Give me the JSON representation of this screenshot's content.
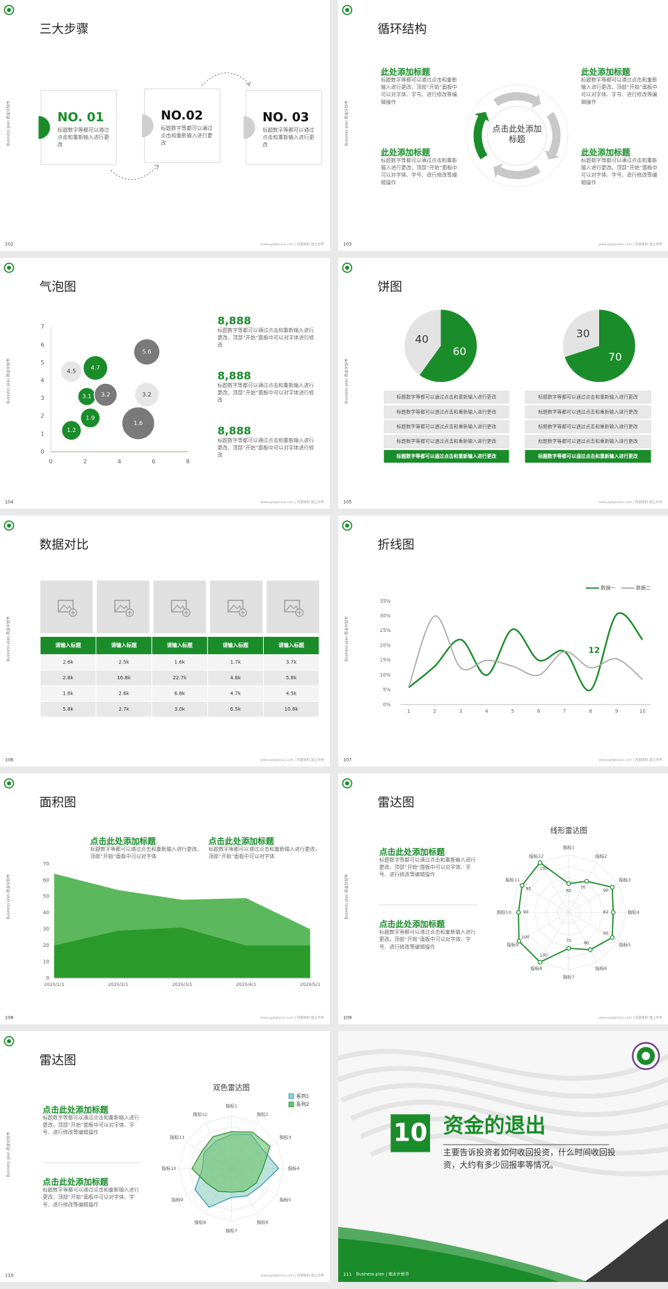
{
  "common": {
    "side_label": "Business plan 商业计划书",
    "footer": "www.pptgenius.com | 内部资料 禁止外传"
  },
  "slides": [
    {
      "page": "102",
      "title": "三大步骤",
      "steps": [
        {
          "label": "NO. 01",
          "text": "标题数字等都可以通过点击和重新输入进行更改"
        },
        {
          "label": "NO.02",
          "text": "标题数字等都可以通过点击和重新输入进行更改"
        },
        {
          "label": "NO. 03",
          "text": "标题数字等都可以通过点击和重新输入进行更改"
        }
      ]
    },
    {
      "page": "103",
      "title": "循环结构",
      "center": "点击此处添加标题",
      "items": [
        {
          "heading": "此处添加标题",
          "text": "标题数字等都可以通过点击和重新输入进行更改，顶部“开始”面板中可以对字体、字号、进行修改等编辑操作"
        },
        {
          "heading": "此处添加标题",
          "text": "标题数字等都可以通过点击和重新输入进行更改，顶部“开始”面板中可以对字体、字号、进行修改等编辑操作"
        },
        {
          "heading": "此处添加标题",
          "text": "标题数字等都可以通过点击和重新输入进行更改，顶部“开始”面板中可以对字体、字号、进行修改等编辑操作"
        },
        {
          "heading": "此处添加标题",
          "text": "标题数字等都可以通过点击和重新输入进行更改，顶部“开始”面板中可以对字体、字号、进行修改等编辑操作"
        }
      ]
    },
    {
      "page": "104",
      "title": "气泡图",
      "chart": {
        "type": "bubble",
        "x": [
          1.2,
          2.6,
          2.1,
          3.2,
          5.6,
          5.6,
          2.3,
          1.2,
          5.1
        ],
        "y": [
          4.5,
          4.7,
          3.1,
          3.2,
          5.6,
          3.2,
          1.9,
          1.2,
          1.6
        ],
        "size": [
          13,
          15,
          11,
          14,
          16,
          15,
          12,
          12,
          20
        ],
        "colors": [
          "#e6e6e6",
          "#1a8c2a",
          "#1a8c2a",
          "#7a7a7a",
          "#7a7a7a",
          "#e6e6e6",
          "#1a8c2a",
          "#1a8c2a",
          "#7a7a7a"
        ],
        "xlim": [
          0,
          8
        ],
        "xticks": [
          0,
          2,
          4,
          6,
          8
        ],
        "ylim": [
          0,
          7
        ],
        "yticks": [
          0,
          1,
          2,
          3,
          4,
          5,
          6,
          7
        ]
      },
      "notes": [
        {
          "value": "8,888",
          "text": "标题数字等都可以通过点击和重新输入进行更改，顶部“开始”面板中可以对字体进行修改"
        },
        {
          "value": "8,888",
          "text": "标题数字等都可以通过点击和重新输入进行更改，顶部“开始”面板中可以对字体进行修改"
        },
        {
          "value": "8,888",
          "text": "标题数字等都可以通过点击和重新输入进行更改，顶部“开始”面板中可以对字体进行修改"
        }
      ]
    },
    {
      "page": "105",
      "title": "饼图",
      "pies": [
        {
          "type": "pie",
          "values": [
            60,
            40
          ],
          "colors": [
            "#1a8c2a",
            "#e3e3e3"
          ]
        },
        {
          "type": "pie",
          "values": [
            70,
            30
          ],
          "colors": [
            "#1a8c2a",
            "#e3e3e3"
          ]
        }
      ],
      "lists": [
        [
          "标题数字等都可以通过点击和重新输入进行更改",
          "标题数字等都可以通过点击和重新输入进行更改",
          "标题数字等都可以通过点击和重新输入进行更改",
          "标题数字等都可以通过点击和重新输入进行更改",
          "标题数字等都可以通过点击和重新输入进行更改"
        ],
        [
          "标题数字等都可以通过点击和重新输入进行更改",
          "标题数字等都可以通过点击和重新输入进行更改",
          "标题数字等都可以通过点击和重新输入进行更改",
          "标题数字等都可以通过点击和重新输入进行更改",
          "标题数字等都可以通过点击和重新输入进行更改"
        ]
      ]
    },
    {
      "page": "106",
      "title": "数据对比",
      "table": {
        "header": [
          "请输入标题",
          "请输入标题",
          "请输入标题",
          "请输入标题",
          "请输入标题"
        ],
        "rows": [
          [
            "2.6k",
            "2.5k",
            "1.6k",
            "1.7k",
            "3.7k"
          ],
          [
            "2.8k",
            "16.8k",
            "22.7k",
            "4.8k",
            "5.8k"
          ],
          [
            "1.6k",
            "2.6k",
            "6.8k",
            "4.7k",
            "4.5k"
          ],
          [
            "5.8k",
            "2.7k",
            "3.0k",
            "6.5k",
            "10.8k"
          ]
        ]
      }
    },
    {
      "page": "107",
      "title": "折线图",
      "chart": {
        "type": "line",
        "x": [
          1,
          2,
          3,
          4,
          5,
          6,
          7,
          8,
          9,
          10
        ],
        "ylim": [
          0,
          35
        ],
        "yticks": [
          {
            "value": 0,
            "label": "0%"
          },
          {
            "value": 5,
            "label": "5%"
          },
          {
            "value": 10,
            "label": "10%"
          },
          {
            "value": 15,
            "label": "15%"
          },
          {
            "value": 20,
            "label": "20%"
          },
          {
            "value": 25,
            "label": "25%"
          },
          {
            "value": 30,
            "label": "30%"
          },
          {
            "value": 35,
            "label": "35%"
          }
        ],
        "legend": "top-right",
        "annotation": "12",
        "series": [
          {
            "name": "数据一",
            "color": "#1a8c2a",
            "values": [
              5.8,
              13,
              22,
              10,
              25.5,
              15,
              18,
              5,
              30.5,
              22
            ]
          },
          {
            "name": "数据二",
            "color": "#aaaaaa",
            "values": [
              6,
              30,
              12.5,
              15,
              13,
              10,
              18,
              12.5,
              15.5,
              8.5
            ]
          }
        ]
      }
    },
    {
      "page": "108",
      "title": "面积图",
      "blocks": [
        {
          "heading": "点击此处添加标题",
          "text": "标题数字等都可以通过点击和重新输入进行更改，顶部“开始”面板中可以对字体"
        },
        {
          "heading": "点击此处添加标题",
          "text": "标题数字等都可以通过点击和重新输入进行更改，顶部“开始”面板中可以对字体"
        }
      ],
      "chart": {
        "type": "area",
        "categories": [
          "2020/1/1",
          "2020/2/1",
          "2020/3/1",
          "2020/4/1",
          "2020/5/1"
        ],
        "ylim": [
          0,
          70
        ],
        "yticks": [
          0,
          10,
          20,
          30,
          40,
          50,
          60,
          70
        ],
        "series": [
          {
            "color": "#5cb85c",
            "values": [
              64,
              54,
              48,
              49,
              30
            ]
          },
          {
            "color": "#2a9a2a",
            "values": [
              20,
              29,
              31,
              20,
              20
            ]
          }
        ]
      }
    },
    {
      "page": "109",
      "title": "雷达图",
      "blocks": [
        {
          "heading": "点击此处添加标题",
          "text": "标题数字等都可以通过点击和重新输入进行更改，顶部“开始”面板中可以对字体、字号、进行修改等编辑操作"
        },
        {
          "heading": "点击此处添加标题",
          "text": "标题数字等都可以通过点击和重新输入进行更改，顶部“开始”面板中可以对字体、字号、进行修改等编辑操作"
        }
      ],
      "chart": {
        "type": "radar",
        "title": "线形雷达图",
        "categories": [
          "指标1",
          "指标2",
          "指标3",
          "指标4",
          "指标5",
          "指标6",
          "指标7",
          "指标8",
          "指标9",
          "指标10",
          "指标11",
          "指标12"
        ],
        "rlim": [
          20,
          100
        ],
        "data_labels": true,
        "series": [
          {
            "color": "#1a8c2a",
            "values": [
              60,
              70,
              90,
              82,
              90,
              80,
              70,
              100,
              100,
              90,
              95,
              100
            ]
          }
        ]
      }
    },
    {
      "page": "110",
      "title": "雷达图",
      "blocks": [
        {
          "heading": "点击此处添加标题",
          "text": "标题数字等都可以通过点击和重新输入进行更改，顶部“开始”面板中可以对字体、字号、进行修改等编辑操作"
        },
        {
          "heading": "点击此处添加标题",
          "text": "标题数字等都可以通过点击和重新输入进行更改，顶部“开始”面板中可以对字体、字号、进行修改等编辑操作"
        }
      ],
      "chart": {
        "type": "radar",
        "title": "双色雷达图",
        "categories": [
          "指标1",
          "指标2",
          "指标3",
          "指标4",
          "指标5",
          "指标6",
          "指标7",
          "指标8",
          "指标9",
          "指标10",
          "指标11",
          "指标12"
        ],
        "rlim": [
          0,
          100
        ],
        "data_labels": false,
        "legend": "top-right",
        "series": [
          {
            "name": "系列1",
            "color": "#2b8fc0",
            "fill": "#8fd0c0",
            "values": [
              65,
              75,
              70,
              90,
              65,
              60,
              55,
              85,
              80,
              55,
              60,
              60
            ]
          },
          {
            "name": "系列2",
            "color": "#1a8c2a",
            "fill": "#6cc06c",
            "values": [
              70,
              80,
              85,
              60,
              55,
              50,
              45,
              50,
              55,
              75,
              65,
              70
            ]
          }
        ]
      }
    },
    {
      "page": "111",
      "number": "10",
      "title": "资金的退出",
      "text": "主要告诉投资者如何收回投资，什么时间收回投资，大约有多少回报率等情况。",
      "footer": "Business plan | 商业计划书"
    }
  ]
}
